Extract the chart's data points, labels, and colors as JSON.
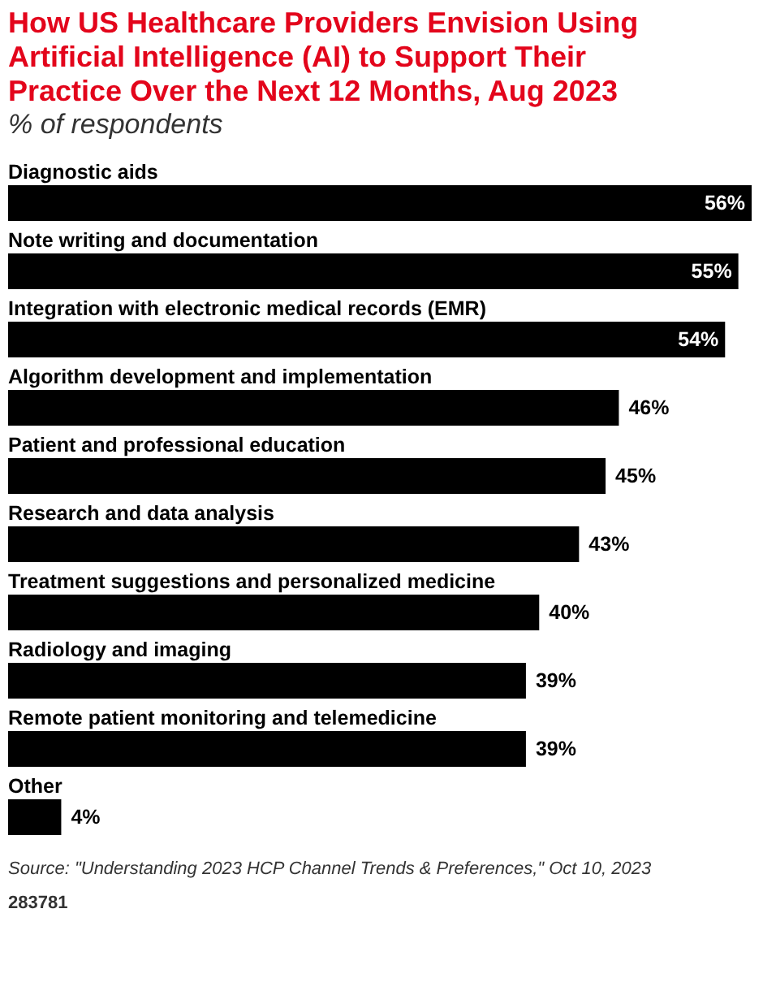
{
  "chart_data": {
    "type": "bar",
    "orientation": "horizontal",
    "title": "How US Healthcare Providers Envision Using Artificial Intelligence (AI) to Support Their Practice Over the Next 12 Months, Aug 2023",
    "subtitle": "% of respondents",
    "categories": [
      "Diagnostic aids",
      "Note writing and documentation",
      "Integration with electronic medical records (EMR)",
      "Algorithm development and implementation",
      "Patient and professional education",
      "Research and data analysis",
      "Treatment suggestions and personalized medicine",
      "Radiology and imaging",
      "Remote patient monitoring and telemedicine",
      "Other"
    ],
    "values": [
      56,
      55,
      54,
      46,
      45,
      43,
      40,
      39,
      39,
      4
    ],
    "value_labels": [
      "56%",
      "55%",
      "54%",
      "46%",
      "45%",
      "43%",
      "40%",
      "39%",
      "39%",
      "4%"
    ],
    "color": "#000000",
    "annotations": [
      "Source: \"Understanding 2023 HCP Channel Trends & Preferences,\" Oct 10, 2023",
      "283781"
    ]
  }
}
